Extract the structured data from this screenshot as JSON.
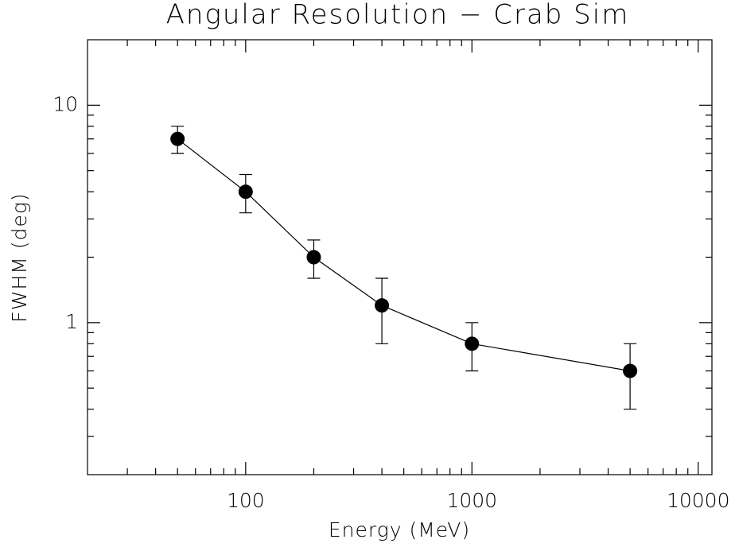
{
  "chart_data": {
    "type": "line",
    "title": "Angular Resolution − Crab Sim",
    "x_label": "Energy (MeV)",
    "y_label": "FWHM (deg)",
    "x": [
      50,
      100,
      200,
      400,
      1000,
      5000
    ],
    "values": [
      7,
      4,
      2,
      1.2,
      0.8,
      0.6
    ],
    "errors": [
      1,
      0.8,
      0.4,
      0.4,
      0.2,
      0.2
    ],
    "color": "#000000",
    "xlim": [
      20,
      11500
    ],
    "ylim": [
      0.2,
      20
    ],
    "xticks": [
      100,
      1000,
      10000
    ],
    "yticks": [
      1,
      10
    ],
    "xscale": "log",
    "yscale": "log"
  }
}
